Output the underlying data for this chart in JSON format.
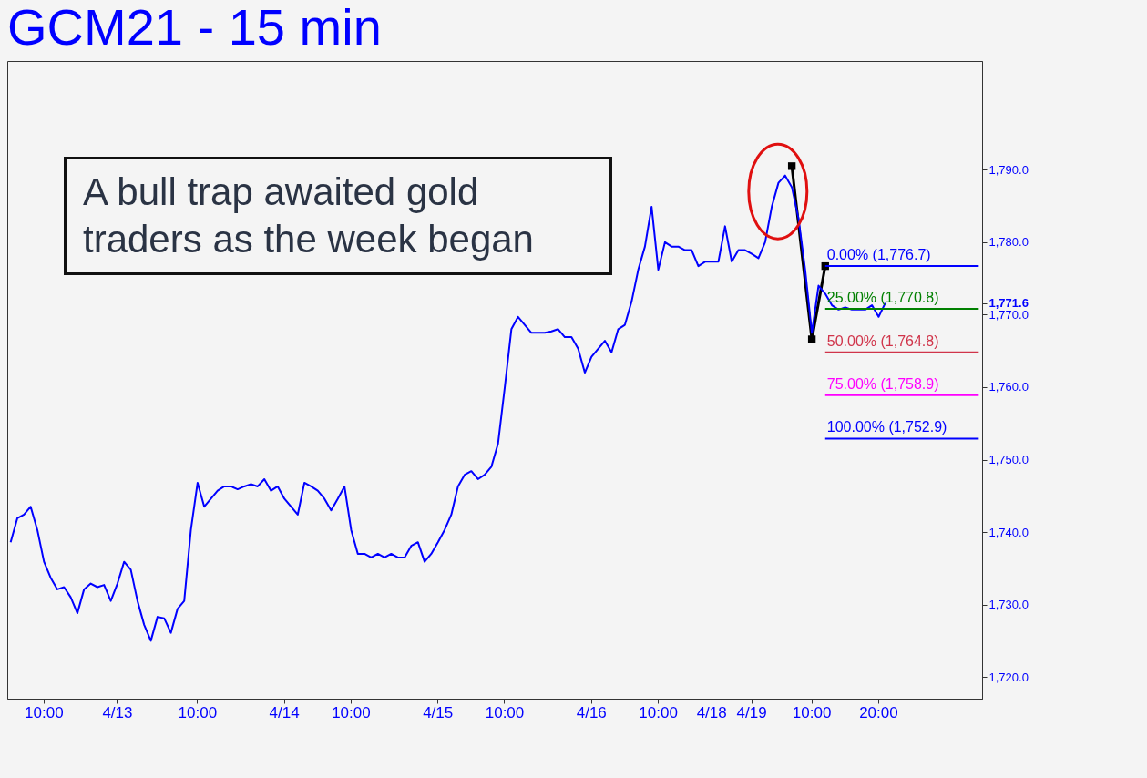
{
  "chart_data": {
    "type": "line",
    "title": "GCM21 - 15 min",
    "categories": [
      null,
      null,
      null,
      null,
      null,
      "10:00",
      null,
      null,
      null,
      null,
      null,
      null,
      null,
      null,
      null,
      null,
      "4/13",
      null,
      null,
      null,
      null,
      null,
      null,
      null,
      null,
      null,
      null,
      null,
      "10:00",
      null,
      null,
      null,
      null,
      null,
      null,
      null,
      null,
      null,
      null,
      null,
      null,
      "4/14",
      null,
      null,
      null,
      null,
      null,
      null,
      null,
      null,
      null,
      "10:00",
      null,
      null,
      null,
      null,
      null,
      null,
      null,
      null,
      null,
      null,
      null,
      null,
      "4/15",
      null,
      null,
      null,
      null,
      null,
      null,
      null,
      null,
      null,
      "10:00",
      null,
      null,
      null,
      null,
      null,
      null,
      null,
      null,
      null,
      null,
      null,
      null,
      "4/16",
      null,
      null,
      null,
      null,
      null,
      null,
      null,
      null,
      null,
      "10:00",
      null,
      null,
      null,
      null,
      null,
      null,
      null,
      "4/18",
      null,
      null,
      null,
      null,
      null,
      "4/19",
      null,
      null,
      null,
      null,
      null,
      null,
      null,
      null,
      "10:00",
      null,
      null,
      null,
      null,
      null,
      null,
      null,
      null,
      null,
      "20:00",
      null,
      null,
      null,
      null,
      null,
      null,
      null,
      null,
      null,
      null,
      null,
      null,
      null,
      null,
      null
    ],
    "series": [
      {
        "color": "#0000ff",
        "values": [
          1738.6,
          1741.9,
          1742.4,
          1743.5,
          1740.3,
          1735.9,
          1733.7,
          1732.1,
          1732.4,
          1731.0,
          1728.8,
          1732.1,
          1732.9,
          1732.4,
          1732.7,
          1730.5,
          1732.9,
          1735.9,
          1734.8,
          1730.5,
          1727.2,
          1725.0,
          1728.3,
          1728.1,
          1726.1,
          1729.4,
          1730.5,
          1740.3,
          1746.8,
          1743.5,
          1744.6,
          1745.7,
          1746.3,
          1746.3,
          1745.9,
          1746.3,
          1746.6,
          1746.3,
          1747.3,
          1745.7,
          1746.3,
          1744.6,
          1743.5,
          1742.4,
          1746.8,
          1746.3,
          1745.7,
          1744.6,
          1743.0,
          1744.6,
          1746.3,
          1740.3,
          1737.0,
          1737.0,
          1736.5,
          1737.0,
          1736.5,
          1737.0,
          1736.5,
          1736.5,
          1738.1,
          1738.6,
          1735.9,
          1737.0,
          1738.6,
          1740.3,
          1742.4,
          1746.3,
          1747.9,
          1748.4,
          1747.3,
          1747.9,
          1749.0,
          1752.2,
          1759.9,
          1768.0,
          1769.7,
          1768.6,
          1767.5,
          1767.5,
          1767.5,
          1767.7,
          1768.0,
          1766.9,
          1766.9,
          1765.3,
          1762.0,
          1764.2,
          1765.3,
          1766.4,
          1764.8,
          1768.0,
          1768.6,
          1771.8,
          1776.2,
          1779.4,
          1784.9,
          1776.2,
          1780.0,
          1779.4,
          1779.4,
          1778.9,
          1778.9,
          1776.7,
          1777.3,
          1777.3,
          1777.3,
          1782.2,
          1777.3,
          1778.9,
          1778.9,
          1778.4,
          1777.8,
          1780.0,
          1784.9,
          1788.2,
          1789.2,
          1787.6,
          1783.3,
          1776.2,
          1767.5,
          1774.0,
          1772.9,
          1771.3,
          1770.7,
          1771.0,
          1770.7,
          1770.7,
          1770.7,
          1771.3,
          1769.7,
          1771.6,
          null,
          null,
          null,
          null,
          null,
          null,
          null,
          null,
          null,
          null,
          null,
          null,
          null,
          null
        ]
      },
      {
        "color": "#000000",
        "marker": "square",
        "values": [
          null,
          null,
          null,
          null,
          null,
          null,
          null,
          null,
          null,
          null,
          null,
          null,
          null,
          null,
          null,
          null,
          null,
          null,
          null,
          null,
          null,
          null,
          null,
          null,
          null,
          null,
          null,
          null,
          null,
          null,
          null,
          null,
          null,
          null,
          null,
          null,
          null,
          null,
          null,
          null,
          null,
          null,
          null,
          null,
          null,
          null,
          null,
          null,
          null,
          null,
          null,
          null,
          null,
          null,
          null,
          null,
          null,
          null,
          null,
          null,
          null,
          null,
          null,
          null,
          null,
          null,
          null,
          null,
          null,
          null,
          null,
          null,
          null,
          null,
          null,
          null,
          null,
          null,
          null,
          null,
          null,
          null,
          null,
          null,
          null,
          null,
          null,
          null,
          null,
          null,
          null,
          null,
          null,
          null,
          null,
          null,
          null,
          null,
          null,
          null,
          null,
          null,
          null,
          null,
          null,
          null,
          null,
          null,
          null,
          null,
          null,
          null,
          null,
          null,
          null,
          null,
          null,
          1790.5,
          null,
          null,
          1766.6,
          null,
          1776.7,
          null,
          null,
          null,
          null,
          null,
          null,
          null,
          null,
          null,
          null,
          null,
          null,
          null,
          null,
          null,
          null,
          null,
          null,
          null,
          null,
          null,
          null,
          null
        ]
      }
    ],
    "ylim": [
      1717,
      1805
    ],
    "yticks": [
      {
        "value": 1720,
        "label": "1,720.0"
      },
      {
        "value": 1730,
        "label": "1,730.0"
      },
      {
        "value": 1740,
        "label": "1,740.0"
      },
      {
        "value": 1750,
        "label": "1,750.0"
      },
      {
        "value": 1760,
        "label": "1,760.0"
      },
      {
        "value": 1770,
        "label": "1,770.0"
      },
      {
        "value": 1771.6,
        "label": "1,771.6"
      },
      {
        "value": 1780,
        "label": "1,780.0"
      },
      {
        "value": 1790,
        "label": "1,790.0"
      }
    ],
    "ref_lines": [
      {
        "axis": "y",
        "value": 1776.7,
        "label": "0.00% (1,776.7)",
        "color": "#0000ff"
      },
      {
        "axis": "y",
        "value": 1770.8,
        "label": "25.00% (1,770.8)",
        "color": "#008000"
      },
      {
        "axis": "y",
        "value": 1764.8,
        "label": "50.00% (1,764.8)",
        "color": "#d0344a"
      },
      {
        "axis": "y",
        "value": 1758.9,
        "label": "75.00% (1,758.9)",
        "color": "#ff00ff"
      },
      {
        "axis": "y",
        "value": 1752.9,
        "label": "100.00% (1,752.9)",
        "color": "#0000ff"
      }
    ],
    "annotations": [
      "A bull trap awaited gold traders as the week began"
    ],
    "grid": false
  }
}
